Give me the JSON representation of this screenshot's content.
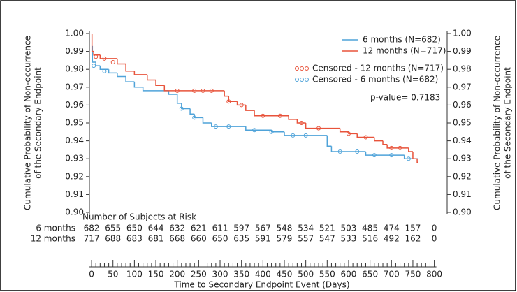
{
  "chart_data": {
    "type": "line",
    "step": true,
    "xlabel": "Time to Secondary Endpoint Event (Days)",
    "ylabel": [
      "Cumulative Probability of Non-occurrence",
      "of the Secondary Endpoint"
    ],
    "y2label": [
      "Cumulative Probability of Non-occurrence",
      "of the Secondary Endpoint"
    ],
    "xlim": [
      -5,
      830
    ],
    "xticks": [
      0,
      50,
      100,
      150,
      200,
      250,
      300,
      350,
      400,
      450,
      500,
      550,
      600,
      650,
      700,
      750,
      800
    ],
    "ylim": [
      0.9,
      1.0
    ],
    "yticks": [
      {
        "value": 1.0,
        "label": "1.00"
      },
      0.99,
      0.98,
      0.97,
      0.96,
      0.95,
      0.94,
      0.93,
      0.92,
      0.91,
      {
        "value": 0.9,
        "label": "0.90"
      }
    ],
    "y2lim": [
      0.9,
      1.0
    ],
    "y2ticks": [
      {
        "value": 1.0,
        "label": "1.00"
      },
      0.99,
      0.98,
      0.97,
      0.96,
      0.95,
      0.94,
      0.93,
      0.92,
      0.91,
      {
        "value": 0.9,
        "label": "0.90"
      }
    ],
    "series": [
      {
        "name": "6 months (N=682)",
        "color": "#4fa3d9",
        "x": [
          0,
          2,
          10,
          20,
          40,
          60,
          80,
          100,
          120,
          180,
          200,
          210,
          230,
          240,
          260,
          280,
          360,
          420,
          450,
          550,
          560,
          640,
          730,
          760
        ],
        "values": [
          0.993,
          0.984,
          0.982,
          0.98,
          0.978,
          0.976,
          0.973,
          0.97,
          0.968,
          0.966,
          0.961,
          0.958,
          0.955,
          0.953,
          0.95,
          0.948,
          0.946,
          0.945,
          0.943,
          0.937,
          0.934,
          0.932,
          0.93,
          0.93
        ]
      },
      {
        "name": "12 months (N=717)",
        "color": "#e8533b",
        "x": [
          0,
          1,
          5,
          20,
          60,
          80,
          100,
          130,
          150,
          170,
          310,
          320,
          340,
          360,
          380,
          460,
          480,
          500,
          580,
          600,
          620,
          660,
          680,
          690,
          740,
          750,
          760
        ],
        "values": [
          1.0,
          0.99,
          0.988,
          0.986,
          0.983,
          0.979,
          0.977,
          0.974,
          0.971,
          0.968,
          0.965,
          0.962,
          0.96,
          0.957,
          0.954,
          0.952,
          0.95,
          0.947,
          0.945,
          0.944,
          0.942,
          0.94,
          0.938,
          0.936,
          0.934,
          0.93,
          0.928
        ]
      }
    ],
    "censored": [
      {
        "name": "Censored - 12 months (N=717)",
        "color": "#e8533b",
        "x": [
          10,
          30,
          50,
          200,
          240,
          260,
          280,
          320,
          350,
          400,
          440,
          490,
          530,
          600,
          640,
          700,
          720
        ],
        "values": [
          0.987,
          0.986,
          0.984,
          0.968,
          0.968,
          0.968,
          0.968,
          0.962,
          0.96,
          0.954,
          0.954,
          0.95,
          0.947,
          0.944,
          0.942,
          0.936,
          0.936
        ]
      },
      {
        "name": "Censored - 6 months (N=682)",
        "color": "#4fa3d9",
        "x": [
          5,
          30,
          210,
          240,
          290,
          320,
          380,
          420,
          470,
          500,
          580,
          620,
          660,
          700,
          740
        ],
        "values": [
          0.982,
          0.979,
          0.958,
          0.953,
          0.948,
          0.948,
          0.946,
          0.945,
          0.943,
          0.943,
          0.934,
          0.934,
          0.932,
          0.932,
          0.93
        ]
      }
    ],
    "annotation": "p-value= 0.7183",
    "risk_table": {
      "title": "Number of Subjects at Risk",
      "rows": [
        {
          "name": "6 months",
          "values": [
            682,
            655,
            650,
            644,
            632,
            621,
            611,
            597,
            567,
            548,
            534,
            521,
            503,
            485,
            474,
            157,
            0
          ]
        },
        {
          "name": "12 months",
          "values": [
            717,
            688,
            683,
            681,
            668,
            660,
            650,
            635,
            591,
            579,
            557,
            547,
            533,
            516,
            492,
            162,
            0
          ]
        }
      ]
    }
  }
}
